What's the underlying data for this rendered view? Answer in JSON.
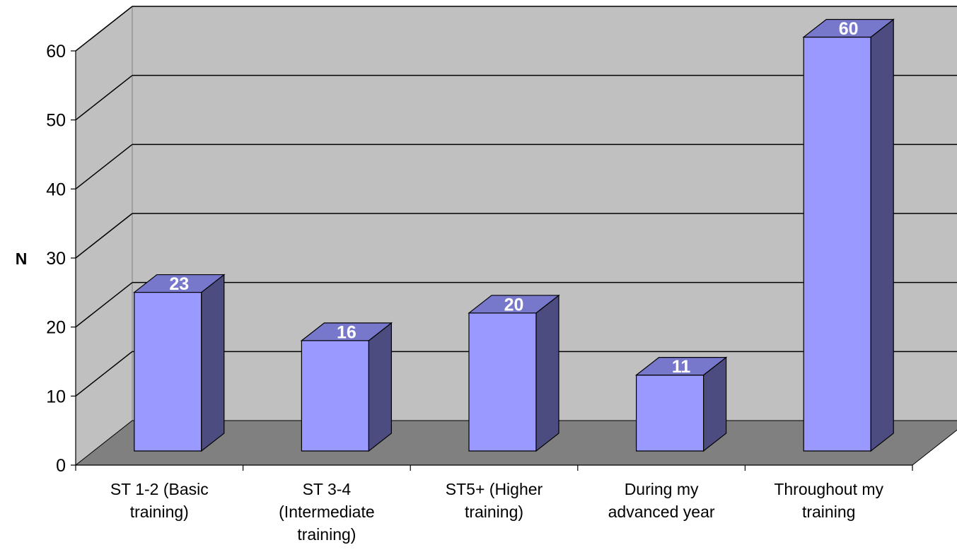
{
  "chart_data": {
    "type": "bar",
    "style": "3d-column",
    "ylabel": "N",
    "xlabel": "",
    "title": "",
    "ylim": [
      0,
      60
    ],
    "yticks": [
      "0",
      "10",
      "20",
      "30",
      "40",
      "50",
      "60"
    ],
    "grid": true,
    "legend": "none",
    "categories": [
      [
        "ST 1-2 (Basic",
        "training)"
      ],
      [
        "ST 3-4",
        "(Intermediate",
        "training)"
      ],
      [
        "ST5+ (Higher",
        "training)"
      ],
      [
        "During my",
        "advanced year"
      ],
      [
        "Throughout my",
        "training"
      ]
    ],
    "values": [
      23,
      16,
      20,
      11,
      60
    ],
    "data_labels": [
      "23",
      "16",
      "20",
      "11",
      "60"
    ],
    "colors": {
      "bar_front": "#9999ff",
      "bar_side": "#4c4c80",
      "bar_top": "#7777cc",
      "back_wall": "#c0c0c0",
      "side_wall": "#c0c0c0",
      "floor": "#808080",
      "data_label": "#ffffff"
    }
  }
}
